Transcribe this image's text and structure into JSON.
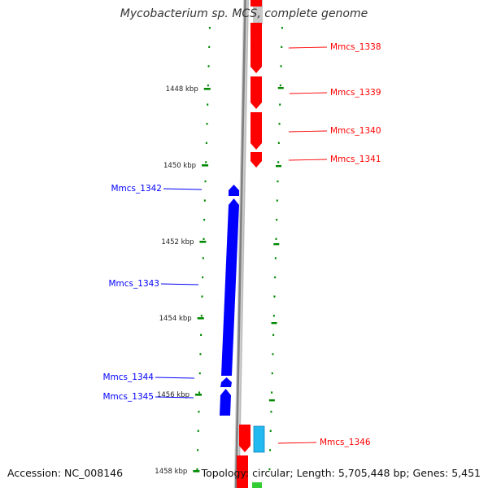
{
  "title": "Mycobacterium sp. MCS, complete genome",
  "footer": {
    "accession": "Accession: NC_008146",
    "summary": "Topology: circular; Length: 5,705,448 bp; Genes: 5,451"
  },
  "colors": {
    "forward_gene": "#ff0000",
    "reverse_gene": "#0000ff",
    "other_feature": "#22b8f0",
    "tick": "#008800",
    "backbone": "#7f7f7f"
  },
  "scale_labels": [
    "1448 kbp",
    "1450 kbp",
    "1452 kbp",
    "1454 kbp",
    "1456 kbp",
    "1458 kbp"
  ],
  "genes_forward": [
    {
      "label": "Mmcs_1338"
    },
    {
      "label": "Mmcs_1339"
    },
    {
      "label": "Mmcs_1340"
    },
    {
      "label": "Mmcs_1341"
    },
    {
      "label": "Mmcs_1346"
    }
  ],
  "genes_reverse": [
    {
      "label": "Mmcs_1342"
    },
    {
      "label": "Mmcs_1343"
    },
    {
      "label": "Mmcs_1344"
    },
    {
      "label": "Mmcs_1345"
    }
  ]
}
